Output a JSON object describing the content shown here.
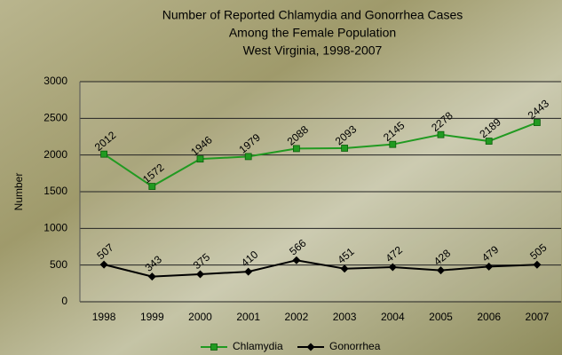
{
  "chart_data": {
    "type": "line",
    "title": [
      "Number of Reported Chlamydia and Gonorrhea Cases",
      "Among the Female Population",
      "West Virginia, 1998-2007"
    ],
    "y_label": "Number",
    "categories": [
      "1998",
      "1999",
      "2000",
      "2001",
      "2002",
      "2003",
      "2004",
      "2005",
      "2006",
      "2007"
    ],
    "series": [
      {
        "name": "Chlamydia",
        "color": "#219a21",
        "marker": "square",
        "values": [
          2012,
          1572,
          1946,
          1979,
          2088,
          2093,
          2145,
          2278,
          2189,
          2443
        ]
      },
      {
        "name": "Gonorrhea",
        "color": "#000000",
        "marker": "diamond",
        "values": [
          507,
          343,
          375,
          410,
          566,
          451,
          472,
          428,
          479,
          505
        ]
      }
    ],
    "ylim": [
      0,
      3000
    ],
    "yticks": [
      0,
      500,
      1000,
      1500,
      2000,
      2500,
      3000
    ],
    "grid": true,
    "legend": "bottom"
  }
}
